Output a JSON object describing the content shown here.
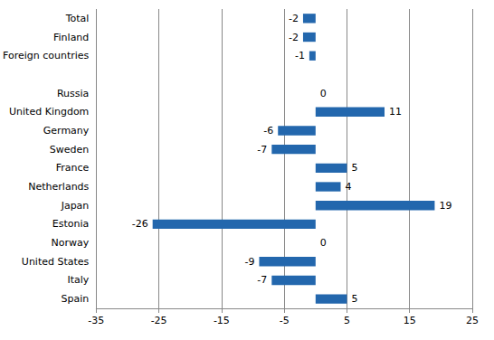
{
  "chart_data": {
    "type": "bar",
    "orientation": "horizontal",
    "categories": [
      "Total",
      "Finland",
      "Foreign countries",
      null,
      "Russia",
      "United Kingdom",
      "Germany",
      "Sweden",
      "France",
      "Netherlands",
      "Japan",
      "Estonia",
      "Norway",
      "United States",
      "Italy",
      "Spain"
    ],
    "values": [
      -2,
      -2,
      -1,
      null,
      0,
      11,
      -6,
      -7,
      5,
      4,
      19,
      -26,
      0,
      -9,
      -7,
      5
    ],
    "color": "#2367ad",
    "xlim": [
      -35,
      25
    ],
    "xticks": [
      -35,
      -25,
      -15,
      -5,
      5,
      15,
      25
    ],
    "grid": true,
    "data_labels": true
  }
}
